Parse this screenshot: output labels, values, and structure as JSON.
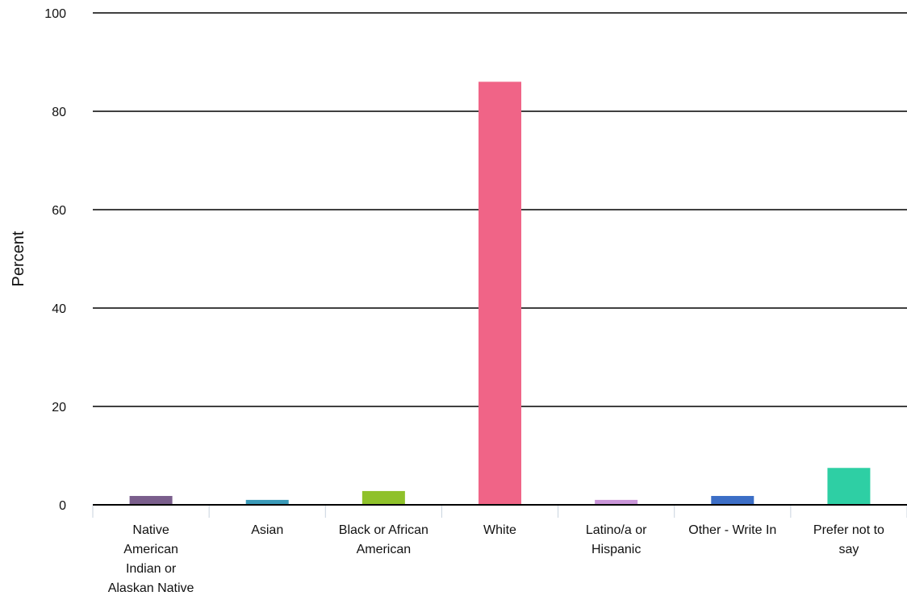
{
  "chart_data": {
    "type": "bar",
    "ylabel": "Percent",
    "ylim": [
      0,
      100
    ],
    "yticks": [
      0,
      20,
      40,
      60,
      80,
      100
    ],
    "grid": true,
    "categories": [
      [
        "Native",
        "American",
        "Indian or",
        "Alaskan Native"
      ],
      [
        "Asian"
      ],
      [
        "Black or African",
        "American"
      ],
      [
        "White"
      ],
      [
        "Latino/a or",
        "Hispanic"
      ],
      [
        "Other - Write In"
      ],
      [
        "Prefer not to",
        "say"
      ]
    ],
    "values": [
      1.8,
      1.0,
      2.8,
      86.0,
      1.0,
      1.8,
      7.5
    ],
    "colors": [
      "#7a5e8c",
      "#3a9ab8",
      "#8fc12a",
      "#f06487",
      "#c995d8",
      "#3c6ec6",
      "#2ecfa4"
    ]
  }
}
